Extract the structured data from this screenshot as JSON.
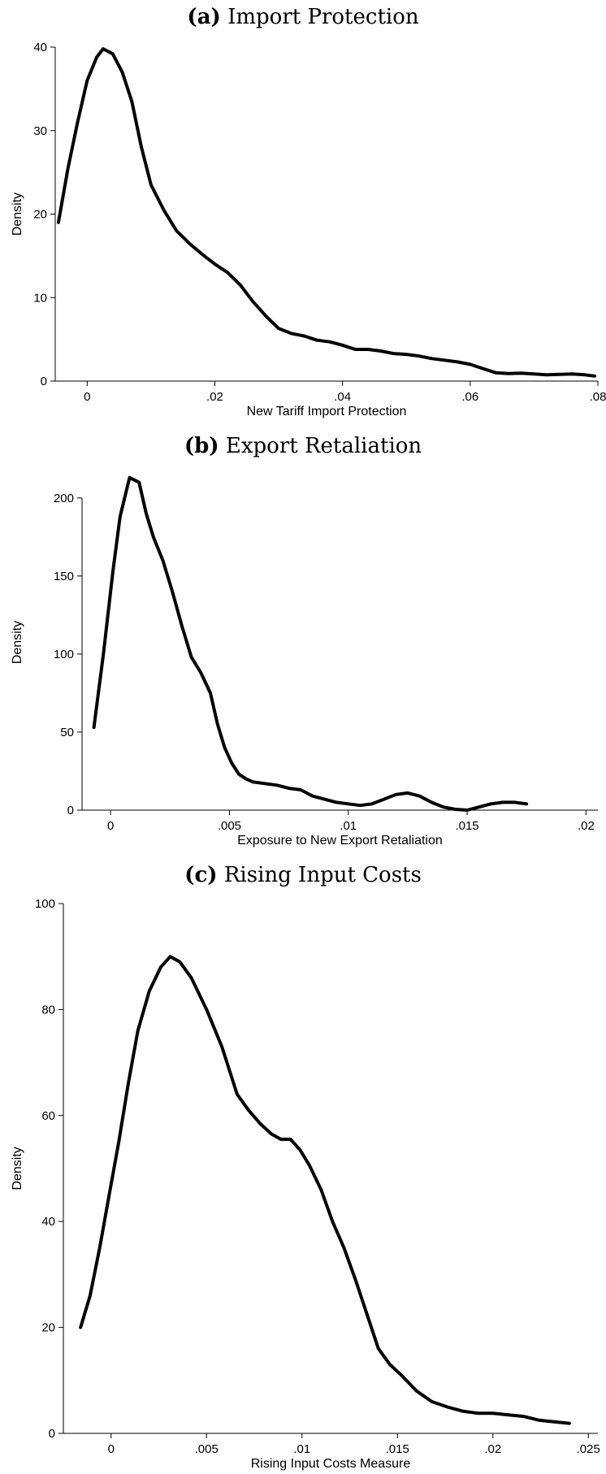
{
  "chart_data": [
    {
      "type": "line",
      "panel_label": "(a)",
      "title": "Import Protection",
      "xlabel": "New Tariff Import Protection",
      "ylabel": "Density",
      "xlim": [
        -0.005,
        0.08
      ],
      "ylim": [
        0,
        40
      ],
      "xticks": [
        0,
        0.02,
        0.04,
        0.06,
        0.08
      ],
      "xtick_labels": [
        "0",
        ".02",
        ".04",
        ".06",
        ".08"
      ],
      "yticks": [
        0,
        10,
        20,
        30,
        40
      ],
      "ytick_labels": [
        "0",
        "10",
        "20",
        "30",
        "40"
      ],
      "grid": false,
      "series": [
        {
          "x": [
            -0.0045,
            -0.003,
            -0.0015,
            0,
            0.0015,
            0.0025,
            0.004,
            0.0055,
            0.007,
            0.0085,
            0.01,
            0.012,
            0.014,
            0.016,
            0.018,
            0.02,
            0.022,
            0.024,
            0.026,
            0.028,
            0.03,
            0.032,
            0.034,
            0.036,
            0.038,
            0.04,
            0.042,
            0.044,
            0.046,
            0.048,
            0.05,
            0.052,
            0.054,
            0.056,
            0.058,
            0.06,
            0.062,
            0.064,
            0.066,
            0.068,
            0.07,
            0.072,
            0.074,
            0.076,
            0.078,
            0.0795
          ],
          "y": [
            19,
            25.5,
            31,
            36,
            38.8,
            39.8,
            39.2,
            37,
            33.5,
            28,
            23.5,
            20.5,
            18,
            16.5,
            15.2,
            14,
            13,
            11.5,
            9.5,
            7.8,
            6.3,
            5.7,
            5.4,
            4.9,
            4.7,
            4.3,
            3.8,
            3.8,
            3.6,
            3.3,
            3.2,
            3.0,
            2.7,
            2.5,
            2.3,
            2.0,
            1.5,
            1.0,
            0.9,
            0.95,
            0.85,
            0.75,
            0.8,
            0.85,
            0.75,
            0.6
          ]
        }
      ]
    },
    {
      "type": "line",
      "panel_label": "(b)",
      "title": "Export Retaliation",
      "xlabel": "Exposure to New Export Retaliation",
      "ylabel": "Density",
      "xlim": [
        -0.0012,
        0.0205
      ],
      "ylim": [
        0,
        215
      ],
      "xticks": [
        0,
        0.005,
        0.01,
        0.015,
        0.02
      ],
      "xtick_labels": [
        "0",
        ".005",
        ".01",
        ".015",
        ".02"
      ],
      "yticks": [
        0,
        50,
        100,
        150,
        200
      ],
      "ytick_labels": [
        "0",
        "50",
        "100",
        "150",
        "200"
      ],
      "grid": false,
      "series": [
        {
          "x": [
            -0.0007,
            -0.0003,
            0.0001,
            0.0004,
            0.0008,
            0.0012,
            0.0015,
            0.0018,
            0.0022,
            0.0026,
            0.003,
            0.0034,
            0.0038,
            0.0042,
            0.0045,
            0.0048,
            0.0051,
            0.0054,
            0.0057,
            0.006,
            0.0065,
            0.007,
            0.0075,
            0.008,
            0.0085,
            0.009,
            0.0095,
            0.01,
            0.0105,
            0.011,
            0.0115,
            0.012,
            0.0125,
            0.013,
            0.0135,
            0.014,
            0.0145,
            0.015,
            0.0155,
            0.016,
            0.0165,
            0.017,
            0.0175
          ],
          "y": [
            53,
            100,
            153,
            188,
            213,
            210,
            190,
            175,
            160,
            140,
            118,
            98,
            88,
            75,
            55,
            40,
            30,
            23,
            20,
            18,
            17,
            16,
            14,
            13,
            9,
            7,
            5,
            4,
            3,
            4,
            7,
            10,
            11,
            9,
            5,
            2,
            0.5,
            0,
            2,
            4,
            5,
            5,
            4
          ]
        }
      ]
    },
    {
      "type": "line",
      "panel_label": "(c)",
      "title": "Rising Input Costs",
      "xlabel": "Rising Input Costs Measure",
      "ylabel": "Density",
      "xlim": [
        -0.0025,
        0.0255
      ],
      "ylim": [
        0,
        100
      ],
      "xticks": [
        0,
        0.005,
        0.01,
        0.015,
        0.02,
        0.025
      ],
      "xtick_labels": [
        "0",
        ".005",
        ".01",
        ".015",
        ".02",
        ".025"
      ],
      "yticks": [
        0,
        20,
        40,
        60,
        80,
        100
      ],
      "ytick_labels": [
        "0",
        "20",
        "40",
        "60",
        "80",
        "100"
      ],
      "grid": false,
      "series": [
        {
          "x": [
            -0.0016,
            -0.0011,
            -0.0006,
            -0.0001,
            0.0004,
            0.0009,
            0.0014,
            0.002,
            0.0026,
            0.0031,
            0.0036,
            0.0042,
            0.005,
            0.0058,
            0.0066,
            0.0072,
            0.0078,
            0.0084,
            0.0089,
            0.0094,
            0.0099,
            0.0104,
            0.011,
            0.0116,
            0.0122,
            0.0128,
            0.0134,
            0.014,
            0.0146,
            0.0152,
            0.016,
            0.0168,
            0.0176,
            0.0184,
            0.0192,
            0.02,
            0.0208,
            0.0216,
            0.0224,
            0.0232,
            0.024
          ],
          "y": [
            20,
            26,
            35,
            45,
            55,
            66,
            76,
            83.5,
            88,
            90,
            89,
            86,
            80,
            73,
            64,
            61,
            58.5,
            56.5,
            55.5,
            55.5,
            53.5,
            50.5,
            46,
            40,
            35,
            29,
            22.5,
            16,
            13,
            11,
            8,
            6,
            5,
            4.2,
            3.8,
            3.8,
            3.5,
            3.2,
            2.5,
            2.2,
            1.9
          ]
        }
      ]
    }
  ]
}
